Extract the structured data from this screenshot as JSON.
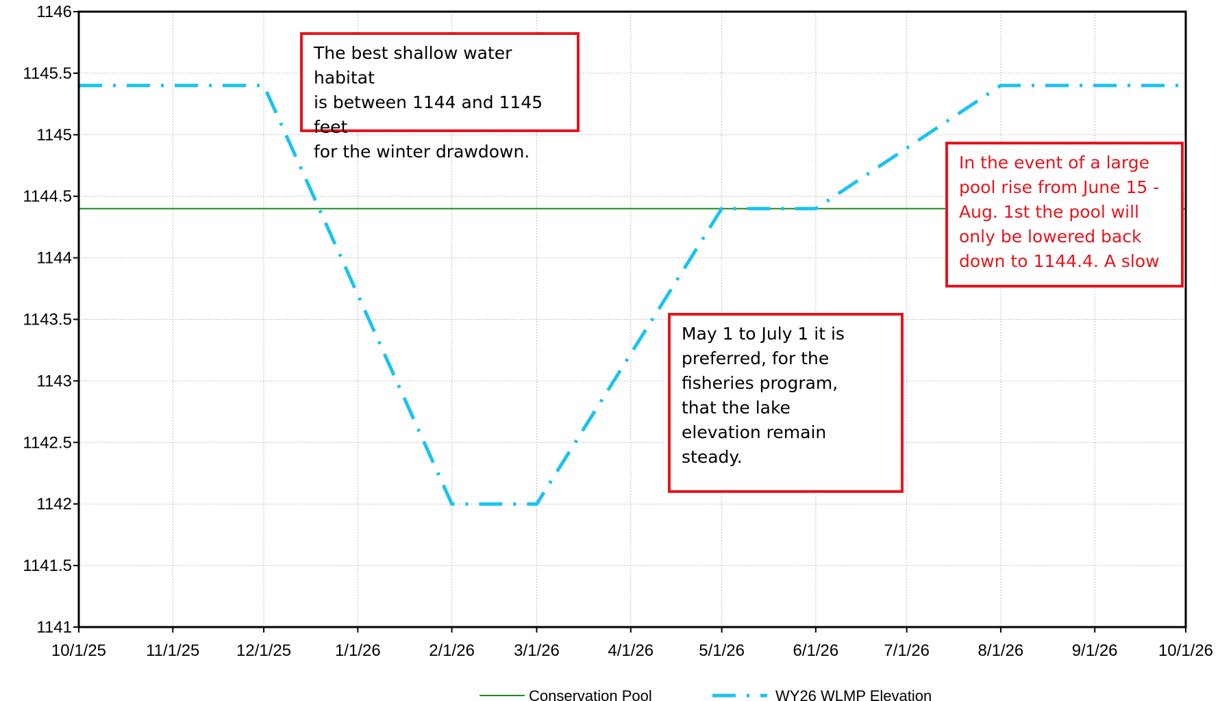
{
  "chart_data": {
    "type": "line",
    "title": "",
    "xlabel": "",
    "ylabel": "",
    "ylim": [
      1141,
      1146
    ],
    "x_ticks": [
      "10/1/25",
      "11/1/25",
      "12/1/25",
      "1/1/26",
      "2/1/26",
      "3/1/26",
      "4/1/26",
      "5/1/26",
      "6/1/26",
      "7/1/26",
      "8/1/26",
      "9/1/26",
      "10/1/26"
    ],
    "y_ticks": [
      "1141",
      "1141.5",
      "1142",
      "1142.5",
      "1143",
      "1143.5",
      "1144",
      "1144.5",
      "1145",
      "1145.5",
      "1146"
    ],
    "grid": true,
    "legend_position": "bottom",
    "series": [
      {
        "name": "Conservation Pool",
        "color": "#1a8a1a",
        "style": "solid",
        "points": [
          [
            "10/1/25",
            1144.4
          ],
          [
            "10/1/26",
            1144.4
          ]
        ]
      },
      {
        "name": "WY26 WLMP Elevation",
        "color": "#19c3f0",
        "style": "dash-dot",
        "points": [
          [
            "10/1/25",
            1145.4
          ],
          [
            "12/1/25",
            1145.4
          ],
          [
            "2/1/26",
            1142.0
          ],
          [
            "3/1/26",
            1142.0
          ],
          [
            "5/1/26",
            1144.4
          ],
          [
            "6/1/26",
            1144.4
          ],
          [
            "8/1/26",
            1145.4
          ],
          [
            "10/1/26",
            1145.4
          ]
        ]
      }
    ],
    "annotations": [
      {
        "id": "winter",
        "text": "The best shallow water habitat\nis between 1144 and 1145 feet\nfor the winter drawdown.",
        "color": "#000000"
      },
      {
        "id": "summer",
        "text": "In the event of a large\npool rise from June 15 -\nAug. 1st the pool will\nonly be lowered back\ndown to 1144.4. A slow",
        "color": "#e8141c"
      },
      {
        "id": "spring",
        "text": "May 1 to July 1 it is\npreferred, for the\nfisheries program,\nthat the lake\nelevation remain\nsteady.",
        "color": "#000000"
      }
    ]
  }
}
